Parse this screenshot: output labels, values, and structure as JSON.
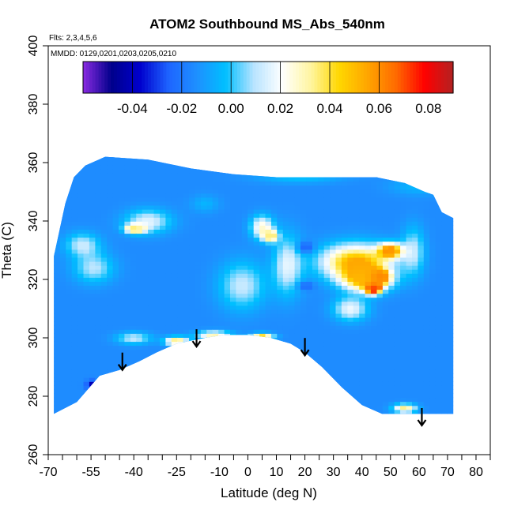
{
  "chart_data": {
    "type": "heatmap",
    "title": "ATOM2 Southbound MS_Abs_540nm",
    "flights_note": "Flts: 2,3,4,5,6",
    "dates_note": "MMDD: 0129,0201,0203,0205,0210",
    "xlabel": "Latitude (deg N)",
    "ylabel": "Theta (C)",
    "xlim": [
      -70,
      85
    ],
    "ylim": [
      260,
      400
    ],
    "x_tick_labels": [
      "-70",
      "-55",
      "-40",
      "-25",
      "-10",
      "0",
      "10",
      "20",
      "30",
      "40",
      "50",
      "60",
      "70",
      "80"
    ],
    "x_tick_values": [
      -70,
      -55,
      -40,
      -25,
      -10,
      0,
      10,
      20,
      30,
      40,
      50,
      60,
      70,
      80
    ],
    "x_minor_ticks": [
      -65,
      -60,
      -50,
      -45,
      -35,
      -30,
      -20,
      -15,
      -5,
      5,
      15,
      25,
      35,
      45,
      55,
      65,
      75,
      85
    ],
    "y_tick_labels": [
      "260",
      "280",
      "300",
      "320",
      "340",
      "360",
      "380",
      "400"
    ],
    "y_tick_values": [
      260,
      280,
      300,
      320,
      340,
      360,
      380,
      400
    ],
    "colorbar": {
      "range": [
        -0.06,
        0.09
      ],
      "tick_values": [
        -0.04,
        -0.02,
        0.0,
        0.02,
        0.04,
        0.06,
        0.08
      ],
      "tick_labels": [
        "-0.04",
        "-0.02",
        "0.00",
        "0.02",
        "0.04",
        "0.06",
        "0.08"
      ],
      "colors": [
        "#8a2be2",
        "#00008b",
        "#0000cd",
        "#1e64ff",
        "#1e90ff",
        "#00bfff",
        "#b8e4ff",
        "#ffffff",
        "#fff5a0",
        "#ffd700",
        "#ffa500",
        "#ff6a00",
        "#ff0000",
        "#b22222"
      ]
    },
    "background_value": -0.015,
    "domain_top": [
      [
        -68,
        328
      ],
      [
        -64,
        346
      ],
      [
        -61,
        355
      ],
      [
        -57,
        359
      ],
      [
        -50,
        362
      ],
      [
        -35,
        361
      ],
      [
        -20,
        358
      ],
      [
        -5,
        356
      ],
      [
        10,
        355
      ],
      [
        30,
        355
      ],
      [
        45,
        355
      ],
      [
        55,
        353
      ],
      [
        62,
        350
      ],
      [
        65,
        349
      ],
      [
        68,
        343
      ],
      [
        72,
        341
      ]
    ],
    "domain_bottom": [
      [
        -68,
        274
      ],
      [
        -60,
        278
      ],
      [
        -52,
        287
      ],
      [
        -45,
        289
      ],
      [
        -38,
        292
      ],
      [
        -32,
        295
      ],
      [
        -25,
        298
      ],
      [
        -15,
        300
      ],
      [
        -8,
        301
      ],
      [
        0,
        301
      ],
      [
        8,
        300
      ],
      [
        15,
        298
      ],
      [
        20,
        295
      ],
      [
        26,
        290
      ],
      [
        33,
        283
      ],
      [
        40,
        277
      ],
      [
        47,
        274
      ],
      [
        55,
        274
      ],
      [
        65,
        274
      ],
      [
        72,
        274
      ]
    ],
    "features": [
      {
        "lat": -39.5,
        "theta": 337.5,
        "value": 0.045,
        "rlat": 3.5,
        "rtheta": 1.5
      },
      {
        "lat": -54,
        "theta": 324,
        "value": 0.01,
        "rlat": 7,
        "rtheta": 5
      },
      {
        "lat": -58,
        "theta": 332,
        "value": 0.012,
        "rlat": 6,
        "rtheta": 4
      },
      {
        "lat": -35,
        "theta": 340,
        "value": 0.016,
        "rlat": 8,
        "rtheta": 4
      },
      {
        "lat": 5,
        "theta": 338,
        "value": 0.026,
        "rlat": 4,
        "rtheta": 4
      },
      {
        "lat": 8,
        "theta": 335,
        "value": 0.04,
        "rlat": 2.5,
        "rtheta": 2
      },
      {
        "lat": 14,
        "theta": 325,
        "value": 0.016,
        "rlat": 5,
        "rtheta": 10
      },
      {
        "lat": -2,
        "theta": 318,
        "value": 0.012,
        "rlat": 8,
        "rtheta": 8
      },
      {
        "lat": 38,
        "theta": 326,
        "value": 0.055,
        "rlat": 12,
        "rtheta": 6
      },
      {
        "lat": 42,
        "theta": 320,
        "value": 0.05,
        "rlat": 8,
        "rtheta": 4
      },
      {
        "lat": 44,
        "theta": 317,
        "value": 0.085,
        "rlat": 2.5,
        "rtheta": 1.8
      },
      {
        "lat": 46,
        "theta": 321,
        "value": 0.07,
        "rlat": 3,
        "rtheta": 2
      },
      {
        "lat": 36,
        "theta": 310,
        "value": 0.018,
        "rlat": 6,
        "rtheta": 4
      },
      {
        "lat": -25,
        "theta": 299,
        "value": 0.04,
        "rlat": 4,
        "rtheta": 1.5
      },
      {
        "lat": -12,
        "theta": 301,
        "value": 0.03,
        "rlat": 6,
        "rtheta": 1.5
      },
      {
        "lat": 5,
        "theta": 300.5,
        "value": 0.045,
        "rlat": 4,
        "rtheta": 1.2
      },
      {
        "lat": 55,
        "theta": 276,
        "value": 0.035,
        "rlat": 4,
        "rtheta": 1.5
      },
      {
        "lat": -55,
        "theta": 284,
        "value": -0.045,
        "rlat": 1.5,
        "rtheta": 1.5
      },
      {
        "lat": 20,
        "theta": 331,
        "value": -0.035,
        "rlat": 3,
        "rtheta": 2
      },
      {
        "lat": 20,
        "theta": 318,
        "value": -0.03,
        "rlat": 3,
        "rtheta": 1.5
      },
      {
        "lat": 50,
        "theta": 330,
        "value": 0.06,
        "rlat": 4,
        "rtheta": 2.5
      },
      {
        "lat": 58,
        "theta": 330,
        "value": 0.01,
        "rlat": 4,
        "rtheta": 8
      },
      {
        "lat": -15,
        "theta": 346,
        "value": -0.005,
        "rlat": 5,
        "rtheta": 3
      },
      {
        "lat": 18,
        "theta": 355,
        "value": -0.002,
        "rlat": 15,
        "rtheta": 2
      },
      {
        "lat": 60,
        "theta": 352,
        "value": -0.004,
        "rlat": 10,
        "rtheta": 3
      },
      {
        "lat": -40,
        "theta": 300,
        "value": 0.012,
        "rlat": 6,
        "rtheta": 2
      }
    ],
    "arrows": [
      {
        "lat": -44,
        "theta": 289
      },
      {
        "lat": -18,
        "theta": 297
      },
      {
        "lat": 20,
        "theta": 294
      },
      {
        "lat": 61,
        "theta": 270
      }
    ]
  }
}
